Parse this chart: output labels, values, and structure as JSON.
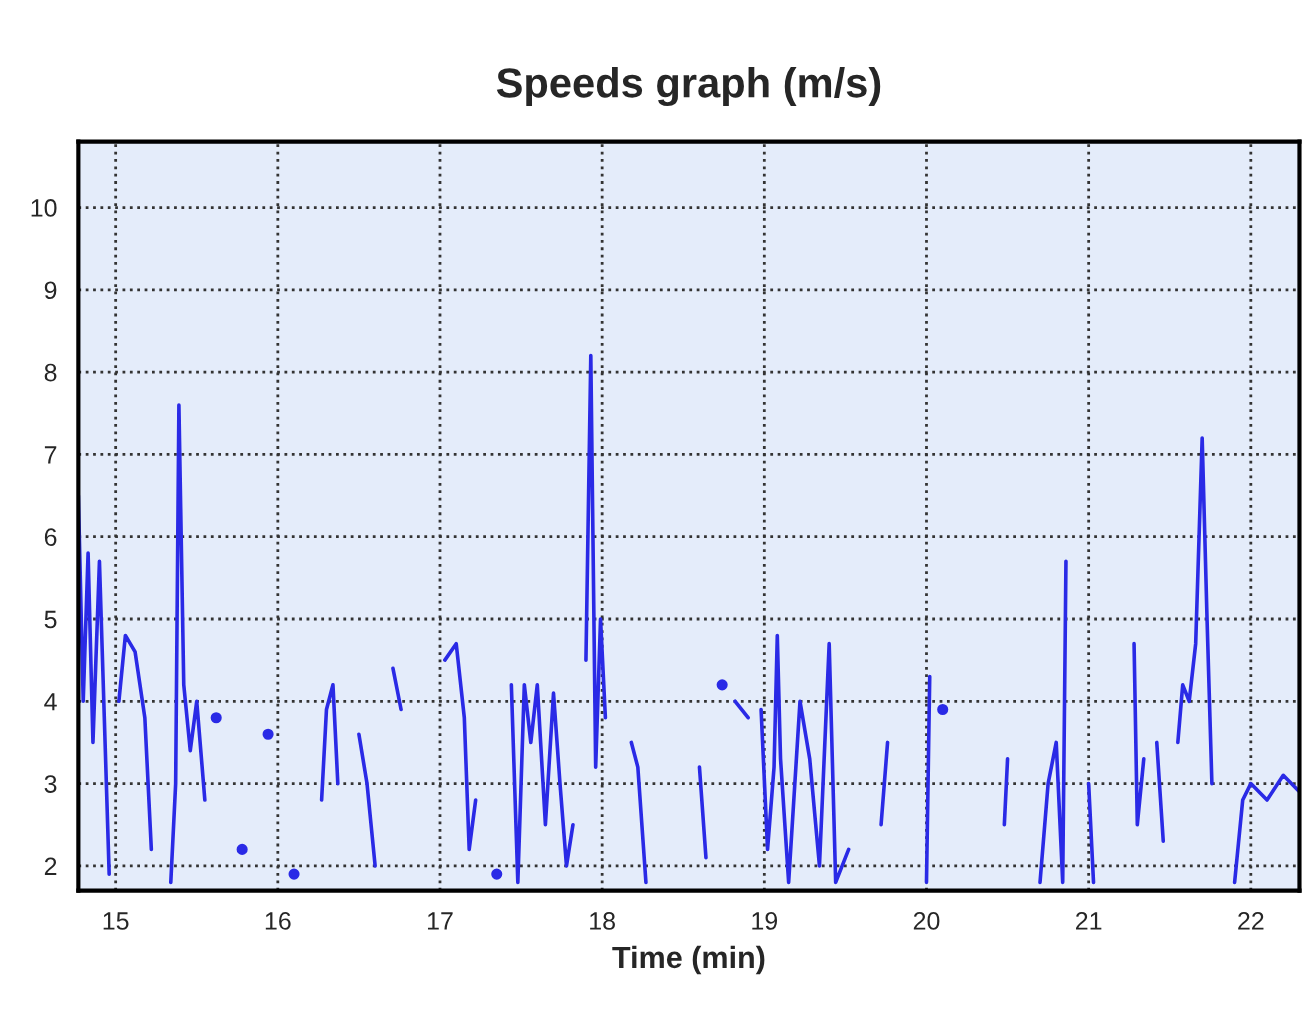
{
  "chart_data": {
    "type": "line",
    "title": "Speeds graph (m/s)",
    "xlabel": "Time (min)",
    "x": [
      14.77,
      14.8,
      14.83,
      14.86,
      14.9,
      14.93,
      14.96,
      15.0,
      15.02,
      15.06,
      15.12,
      15.18,
      15.22,
      15.26,
      15.34,
      15.37,
      15.39,
      15.42,
      15.46,
      15.5,
      15.55,
      15.6,
      15.62,
      15.66,
      15.78,
      15.8,
      15.94,
      15.97,
      16.1,
      16.15,
      16.27,
      16.3,
      16.34,
      16.37,
      16.42,
      16.5,
      16.55,
      16.6,
      16.67,
      16.71,
      16.76,
      16.8,
      17.0,
      17.03,
      17.1,
      17.15,
      17.18,
      17.22,
      17.25,
      17.35,
      17.42,
      17.44,
      17.48,
      17.52,
      17.56,
      17.6,
      17.65,
      17.7,
      17.74,
      17.78,
      17.82,
      17.86,
      17.9,
      17.93,
      17.96,
      17.99,
      18.02,
      18.06,
      18.18,
      18.22,
      18.27,
      18.32,
      18.6,
      18.64,
      18.7,
      18.74,
      18.78,
      18.82,
      18.9,
      18.95,
      18.98,
      19.02,
      19.06,
      19.08,
      19.1,
      19.15,
      19.22,
      19.28,
      19.34,
      19.4,
      19.44,
      19.52,
      19.6,
      19.72,
      19.76,
      19.8,
      20.0,
      20.02,
      20.06,
      20.1,
      20.15,
      20.24,
      20.48,
      20.5,
      20.55,
      20.7,
      20.75,
      20.8,
      20.84,
      20.86,
      20.89,
      21.0,
      21.03,
      21.15,
      21.28,
      21.3,
      21.34,
      21.38,
      21.42,
      21.46,
      21.5,
      21.55,
      21.58,
      21.62,
      21.66,
      21.7,
      21.73,
      21.76,
      21.8,
      21.85,
      21.9,
      21.95,
      22.0,
      22.1,
      22.2,
      22.3
    ],
    "series": [
      {
        "color": "#2a2ae6",
        "values": [
          6.5,
          4.0,
          5.8,
          3.5,
          5.7,
          3.8,
          1.9,
          null,
          4.0,
          4.8,
          4.6,
          3.8,
          2.2,
          null,
          1.8,
          3.0,
          7.6,
          4.2,
          3.4,
          4.0,
          2.8,
          null,
          3.8,
          null,
          2.2,
          null,
          3.6,
          null,
          1.9,
          null,
          2.8,
          3.9,
          4.2,
          3.0,
          null,
          3.6,
          3.0,
          2.0,
          null,
          4.4,
          3.9,
          null,
          null,
          4.5,
          4.7,
          3.8,
          2.2,
          2.8,
          null,
          1.9,
          null,
          4.2,
          1.8,
          4.2,
          3.5,
          4.2,
          2.5,
          4.1,
          3.0,
          2.0,
          2.5,
          null,
          4.5,
          8.2,
          3.2,
          5.0,
          3.8,
          null,
          3.5,
          3.2,
          1.8,
          null,
          3.2,
          2.1,
          null,
          4.2,
          null,
          4.0,
          3.8,
          null,
          3.9,
          2.2,
          3.2,
          4.8,
          3.3,
          1.8,
          4.0,
          3.3,
          2.0,
          4.7,
          1.8,
          2.2,
          null,
          2.5,
          3.5,
          null,
          1.8,
          4.3,
          null,
          3.9,
          null,
          null,
          2.5,
          3.3,
          null,
          1.8,
          3.0,
          3.5,
          1.8,
          5.7,
          null,
          3.0,
          1.8,
          null,
          4.7,
          2.5,
          3.3,
          null,
          3.5,
          2.3,
          null,
          3.5,
          4.2,
          4.0,
          4.7,
          7.2,
          5.0,
          3.0,
          null,
          null,
          1.8,
          2.8,
          3.0,
          2.8,
          3.1,
          2.9
        ]
      }
    ],
    "xlim": [
      14.77,
      22.3
    ],
    "ylim": [
      1.7,
      10.8
    ],
    "xticks": [
      15,
      16,
      17,
      18,
      19,
      20,
      21,
      22
    ],
    "yticks": [
      2,
      3,
      4,
      5,
      6,
      7,
      8,
      9,
      10
    ],
    "grid": true,
    "line_style": "solid",
    "marker": "none"
  }
}
